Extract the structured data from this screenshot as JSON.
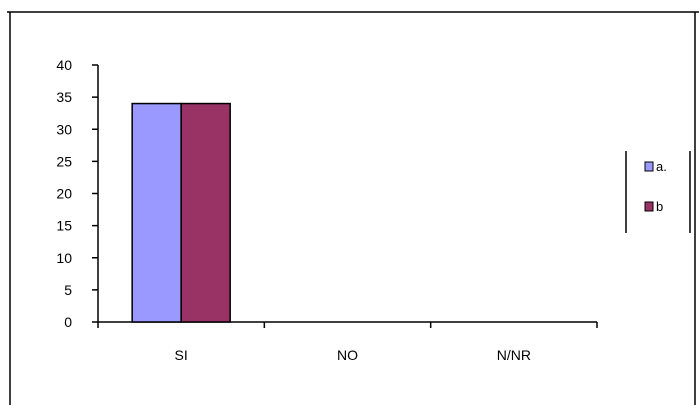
{
  "chart_data": {
    "type": "bar",
    "title": "",
    "xlabel": "",
    "ylabel": "",
    "categories": [
      "SI",
      "NO",
      "N/NR"
    ],
    "series": [
      {
        "name": "a.",
        "values": [
          34,
          0,
          0
        ],
        "color": "#9999ff"
      },
      {
        "name": "b",
        "values": [
          34,
          0,
          0
        ],
        "color": "#993366"
      }
    ],
    "ylim": [
      0,
      40
    ],
    "yticks": [
      "0",
      "5",
      "10",
      "15",
      "20",
      "25",
      "30",
      "35",
      "40"
    ],
    "grid": false,
    "legend_position": "right"
  }
}
